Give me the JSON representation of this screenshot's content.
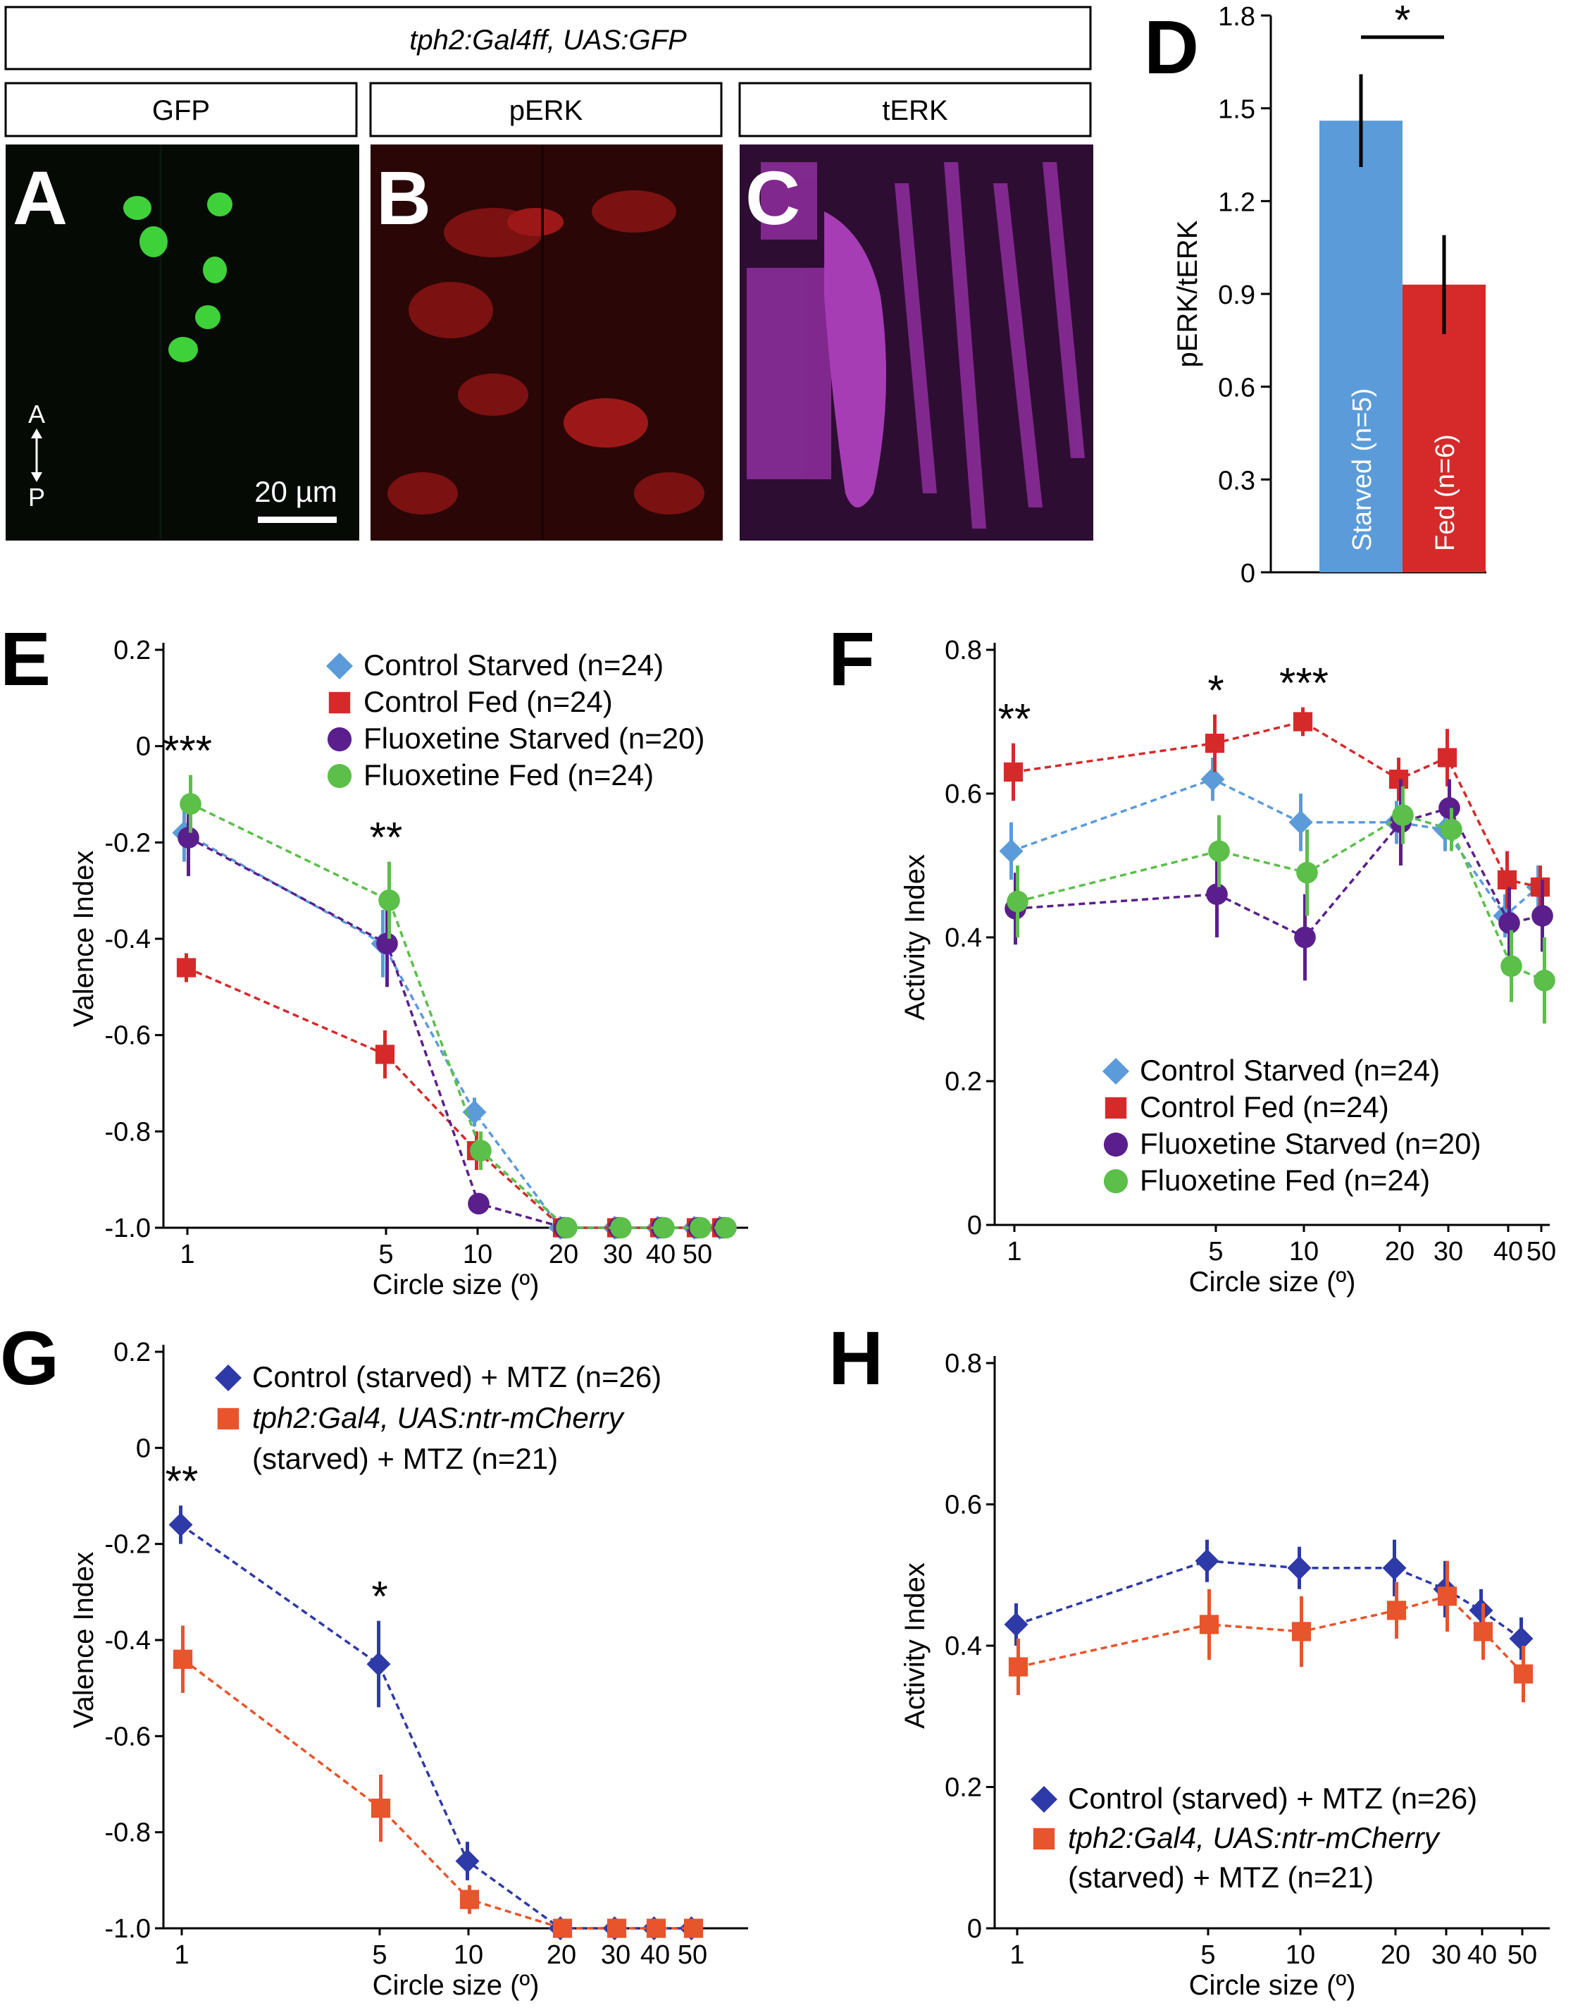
{
  "header": {
    "genotype": "tph2:Gal4ff, UAS:GFP",
    "channels": [
      "GFP",
      "pERK",
      "tERK"
    ]
  },
  "micrographs": {
    "A": {
      "letter": "A",
      "axis_top": "A",
      "axis_bottom": "P",
      "scale_label": "20 µm",
      "color": "#3fd13a"
    },
    "B": {
      "letter": "B",
      "color": "#c8202a"
    },
    "C": {
      "letter": "C",
      "color": "#a636b4"
    }
  },
  "chart_data": [
    {
      "panel": "D",
      "type": "bar",
      "ylabel": "pERK/tERK",
      "ylim": [
        0,
        1.8
      ],
      "yticks": [
        "0",
        "0.3",
        "0.6",
        "0.9",
        "1.2",
        "1.5",
        "1.8"
      ],
      "categories": [
        "Starved (n=5)",
        "Fed (n=6)"
      ],
      "values": [
        1.46,
        0.93
      ],
      "errors": [
        0.15,
        0.16
      ],
      "colors": [
        "#5b9bd9",
        "#d62a2a"
      ],
      "significance": "*"
    },
    {
      "panel": "E",
      "type": "line",
      "ylabel": "Valence Index",
      "xlabel": "Circle size (º)",
      "ylim": [
        -1.0,
        0.2
      ],
      "yticks": [
        "-1.0",
        "-0.8",
        "-0.6",
        "-0.4",
        "-0.2",
        "0",
        "0.2"
      ],
      "xticks": [
        "1",
        "5",
        "10",
        "20",
        "30",
        "40",
        "50"
      ],
      "x": [
        1,
        5,
        10,
        20,
        30,
        40,
        50,
        60
      ],
      "series": [
        {
          "name": "Control Starved (n=24)",
          "color": "#5b9bd9",
          "marker": "diamond",
          "values": [
            -0.18,
            -0.41,
            -0.76,
            -1.0,
            -1.0,
            -1.0,
            -1.0,
            -1.0
          ],
          "errors": [
            0.06,
            0.07,
            0.03,
            0,
            0,
            0,
            0,
            0
          ]
        },
        {
          "name": "Control Fed (n=24)",
          "color": "#d62a2a",
          "marker": "square",
          "values": [
            -0.46,
            -0.64,
            -0.84,
            -1.0,
            -1.0,
            -1.0,
            -1.0,
            -1.0
          ],
          "errors": [
            0.03,
            0.05,
            0.04,
            0,
            0,
            0,
            0,
            0
          ]
        },
        {
          "name": "Fluoxetine Starved (n=20)",
          "color": "#5a1f8c",
          "marker": "circle",
          "values": [
            -0.19,
            -0.41,
            -0.95,
            -1.0,
            -1.0,
            -1.0,
            -1.0,
            -1.0
          ],
          "errors": [
            0.08,
            0.09,
            0.02,
            0,
            0,
            0,
            0,
            0
          ]
        },
        {
          "name": "Fluoxetine Fed (n=24)",
          "color": "#5bbf4a",
          "marker": "circle",
          "values": [
            -0.12,
            -0.32,
            -0.84,
            -1.0,
            -1.0,
            -1.0,
            -1.0,
            -1.0
          ],
          "errors": [
            0.06,
            0.08,
            0.04,
            0,
            0,
            0,
            0,
            0
          ]
        }
      ],
      "annotations": [
        {
          "x": 1,
          "text": "***"
        },
        {
          "x": 5,
          "text": "**"
        }
      ],
      "legend": "top-right"
    },
    {
      "panel": "F",
      "type": "line",
      "ylabel": "Activity Index",
      "xlabel": "Circle size (º)",
      "ylim": [
        0,
        0.8
      ],
      "yticks": [
        "0",
        "0.2",
        "0.4",
        "0.6",
        "0.8"
      ],
      "xticks": [
        "1",
        "5",
        "10",
        "20",
        "30",
        "40",
        "50"
      ],
      "x": [
        1,
        5,
        10,
        20,
        30,
        40,
        50
      ],
      "series": [
        {
          "name": "Control Starved (n=24)",
          "color": "#5b9bd9",
          "marker": "diamond",
          "values": [
            0.52,
            0.62,
            0.56,
            0.56,
            0.55,
            0.43,
            0.47
          ],
          "errors": [
            0.04,
            0.03,
            0.04,
            0.03,
            0.03,
            0.03,
            0.03
          ]
        },
        {
          "name": "Control Fed (n=24)",
          "color": "#d62a2a",
          "marker": "square",
          "values": [
            0.63,
            0.67,
            0.7,
            0.62,
            0.65,
            0.48,
            0.47
          ],
          "errors": [
            0.04,
            0.04,
            0.02,
            0.03,
            0.04,
            0.04,
            0.03
          ]
        },
        {
          "name": "Fluoxetine Starved (n=20)",
          "color": "#5a1f8c",
          "marker": "circle",
          "values": [
            0.44,
            0.46,
            0.4,
            0.56,
            0.58,
            0.42,
            0.43
          ],
          "errors": [
            0.05,
            0.06,
            0.06,
            0.06,
            0.04,
            0.05,
            0.05
          ]
        },
        {
          "name": "Fluoxetine Fed (n=24)",
          "color": "#5bbf4a",
          "marker": "circle",
          "values": [
            0.45,
            0.52,
            0.49,
            0.57,
            0.55,
            0.36,
            0.34
          ],
          "errors": [
            0.05,
            0.05,
            0.06,
            0.04,
            0.03,
            0.05,
            0.06
          ]
        }
      ],
      "annotations": [
        {
          "x": 1,
          "text": "**"
        },
        {
          "x": 5,
          "text": "*"
        },
        {
          "x": 10,
          "text": "***"
        }
      ],
      "legend": "bottom-right"
    },
    {
      "panel": "G",
      "type": "line",
      "ylabel": "Valence Index",
      "xlabel": "Circle size (º)",
      "ylim": [
        -1.0,
        0.2
      ],
      "yticks": [
        "-1.0",
        "-0.8",
        "-0.6",
        "-0.4",
        "-0.2",
        "0",
        "0.2"
      ],
      "xticks": [
        "1",
        "5",
        "10",
        "20",
        "30",
        "40",
        "50"
      ],
      "x": [
        1,
        5,
        10,
        20,
        30,
        40,
        50
      ],
      "series": [
        {
          "name": "Control (starved) + MTZ (n=26)",
          "color": "#2d3aa8",
          "marker": "diamond",
          "values": [
            -0.16,
            -0.45,
            -0.86,
            -1.0,
            -1.0,
            -1.0,
            -1.0
          ],
          "errors": [
            0.04,
            0.09,
            0.04,
            0,
            0,
            0,
            0
          ]
        },
        {
          "name": "tph2:Gal4, UAS:ntr-mCherry",
          "name2": "(starved) + MTZ (n=21)",
          "color": "#e8542b",
          "marker": "square",
          "values": [
            -0.44,
            -0.75,
            -0.94,
            -1.0,
            -1.0,
            -1.0,
            -1.0
          ],
          "errors": [
            0.07,
            0.07,
            0.03,
            0,
            0,
            0,
            0
          ]
        }
      ],
      "annotations": [
        {
          "x": 1,
          "text": "**"
        },
        {
          "x": 5,
          "text": "*"
        }
      ],
      "legend": "top-right"
    },
    {
      "panel": "H",
      "type": "line",
      "ylabel": "Activity Index",
      "xlabel": "Circle size (º)",
      "ylim": [
        0,
        0.8
      ],
      "yticks": [
        "0",
        "0.2",
        "0.4",
        "0.6",
        "0.8"
      ],
      "xticks": [
        "1",
        "5",
        "10",
        "20",
        "30",
        "40",
        "50"
      ],
      "x": [
        1,
        5,
        10,
        20,
        30,
        40,
        50
      ],
      "series": [
        {
          "name": "Control (starved) + MTZ (n=26)",
          "color": "#2d3aa8",
          "marker": "diamond",
          "values": [
            0.43,
            0.52,
            0.51,
            0.51,
            0.48,
            0.45,
            0.41
          ],
          "errors": [
            0.03,
            0.03,
            0.03,
            0.04,
            0.04,
            0.03,
            0.03
          ]
        },
        {
          "name": "tph2:Gal4, UAS:ntr-mCherry",
          "name2": "(starved) + MTZ (n=21)",
          "color": "#e8542b",
          "marker": "square",
          "values": [
            0.37,
            0.43,
            0.42,
            0.45,
            0.47,
            0.42,
            0.36
          ],
          "errors": [
            0.04,
            0.05,
            0.05,
            0.04,
            0.05,
            0.04,
            0.04
          ]
        }
      ],
      "annotations": [],
      "legend": "bottom-right"
    }
  ]
}
